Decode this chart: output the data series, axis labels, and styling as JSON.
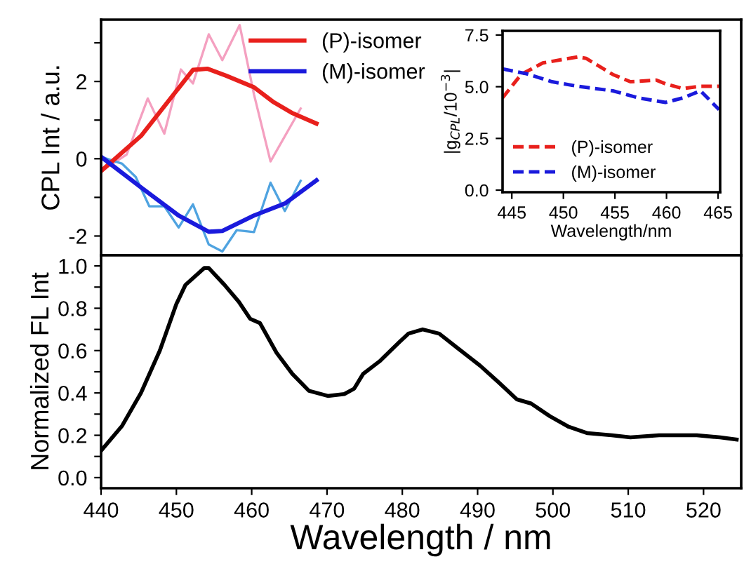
{
  "chart_data": [
    {
      "type": "line",
      "ylabel": "CPL Int / a.u.",
      "xlim": [
        440,
        525
      ],
      "xticks": [
        440,
        450,
        460,
        470,
        480,
        490,
        500,
        510,
        520
      ],
      "ylim": [
        -2.5,
        3.6
      ],
      "yticks": [
        -2,
        {
          "value": -1,
          "label": null
        },
        0,
        {
          "value": 1,
          "label": null
        },
        2,
        {
          "value": 3,
          "label": null
        }
      ],
      "tick_labels": "y",
      "legend": "top",
      "marker": "none",
      "series": [
        {
          "color": "#f4a0c0",
          "x": [
            440,
            443.4,
            446.2,
            448.4,
            450.6,
            452.2,
            454.3,
            456.1,
            458.4,
            460.3,
            462.5,
            466.5
          ],
          "values": [
            -0.32,
            0.11,
            1.56,
            0.65,
            2.31,
            1.95,
            3.22,
            2.55,
            3.46,
            1.67,
            -0.07,
            1.3
          ]
        },
        {
          "color": "#4fa3e0",
          "x": [
            440,
            442.8,
            444.6,
            446.4,
            448.4,
            450.3,
            452.2,
            454.3,
            456.1,
            458.0,
            460.3,
            462.5,
            464.4,
            466.5
          ],
          "values": [
            0.05,
            -0.13,
            -0.47,
            -1.23,
            -1.23,
            -1.78,
            -1.18,
            -2.22,
            -2.4,
            -1.85,
            -1.9,
            -0.62,
            -1.35,
            -0.57
          ]
        },
        {
          "name": "(P)-isomer",
          "color": "#e8201c",
          "x": [
            440,
            445.3,
            452.2,
            454.1,
            456.6,
            460.3,
            462.8,
            465.3,
            468.6
          ],
          "values": [
            -0.32,
            0.59,
            2.3,
            2.33,
            2.15,
            1.85,
            1.48,
            1.19,
            0.91
          ]
        },
        {
          "name": "(M)-isomer",
          "color": "#1a1adc",
          "x": [
            440,
            445.3,
            450.3,
            454.3,
            456.1,
            460.3,
            464.4,
            468.6
          ],
          "values": [
            0.05,
            -0.74,
            -1.47,
            -1.89,
            -1.87,
            -1.47,
            -1.16,
            -0.56
          ]
        }
      ]
    },
    {
      "type": "line",
      "xlabel": "Wavelength/nm",
      "ylabel": "|g$_{CPL}$/10$^{−3}$|",
      "xlim": [
        444.1,
        465.2
      ],
      "xticks": [
        445,
        450,
        455,
        460,
        465
      ],
      "ylim": [
        -0.1,
        7.7
      ],
      "yticks": [
        {
          "value": 0,
          "label": "0.0"
        },
        2.5,
        {
          "value": 5,
          "label": "5.0"
        },
        7.5
      ],
      "legend": "bottom left",
      "marker": "none",
      "line_style": "dashed",
      "series": [
        {
          "name": "(P)-isomer",
          "color": "#e8201c",
          "x": [
            444.1,
            445.9,
            448.0,
            451.4,
            452.2,
            454.8,
            456.5,
            459.0,
            459.9,
            461.6,
            463.3,
            465.1
          ],
          "values": [
            4.46,
            5.59,
            6.15,
            6.44,
            6.37,
            5.59,
            5.24,
            5.32,
            5.14,
            4.91,
            5.02,
            5.02
          ]
        },
        {
          "name": "(M)-isomer",
          "color": "#1a1adc",
          "x": [
            444.1,
            446.4,
            448.9,
            451.4,
            454.8,
            457.3,
            459.9,
            461.6,
            463.3,
            465.1
          ],
          "values": [
            5.86,
            5.63,
            5.24,
            5.02,
            4.8,
            4.46,
            4.24,
            4.46,
            4.8,
            3.89
          ]
        }
      ]
    },
    {
      "type": "line",
      "xlabel": "Wavelength / nm",
      "ylabel": "Normalized FL Int",
      "xlim": [
        440,
        525
      ],
      "xticks": [
        440,
        450,
        460,
        470,
        480,
        490,
        500,
        510,
        520
      ],
      "ylim": [
        -0.05,
        1.05
      ],
      "yticks": [
        {
          "value": 0,
          "label": "0.0"
        },
        {
          "value": 0.1,
          "label": null
        },
        0.2,
        {
          "value": 0.3,
          "label": null
        },
        0.4,
        {
          "value": 0.5,
          "label": null
        },
        0.6,
        {
          "value": 0.7,
          "label": null
        },
        0.8,
        {
          "value": 0.9,
          "label": null
        },
        {
          "value": 1,
          "label": "1.0"
        }
      ],
      "marker": "none",
      "series": [
        {
          "color": "#000000",
          "x": [
            440,
            442.8,
            445.3,
            447.8,
            450.0,
            451.2,
            453.7,
            454.3,
            456.4,
            458.3,
            459.8,
            461.1,
            463.3,
            465.4,
            467.6,
            470.1,
            472.3,
            473.6,
            474.8,
            477.0,
            479.6,
            480.8,
            482.7,
            484.9,
            487.4,
            490.3,
            492.8,
            495.2,
            497.1,
            499.6,
            502.1,
            504.6,
            507.8,
            510.3,
            514.1,
            517.2,
            519.1,
            522.2,
            524.4
          ],
          "values": [
            0.127,
            0.245,
            0.4,
            0.6,
            0.82,
            0.91,
            0.99,
            0.99,
            0.91,
            0.83,
            0.75,
            0.73,
            0.59,
            0.49,
            0.41,
            0.386,
            0.395,
            0.42,
            0.49,
            0.55,
            0.64,
            0.68,
            0.7,
            0.68,
            0.61,
            0.53,
            0.45,
            0.37,
            0.35,
            0.29,
            0.24,
            0.21,
            0.2,
            0.19,
            0.2,
            0.2,
            0.2,
            0.19,
            0.18
          ]
        }
      ]
    }
  ]
}
